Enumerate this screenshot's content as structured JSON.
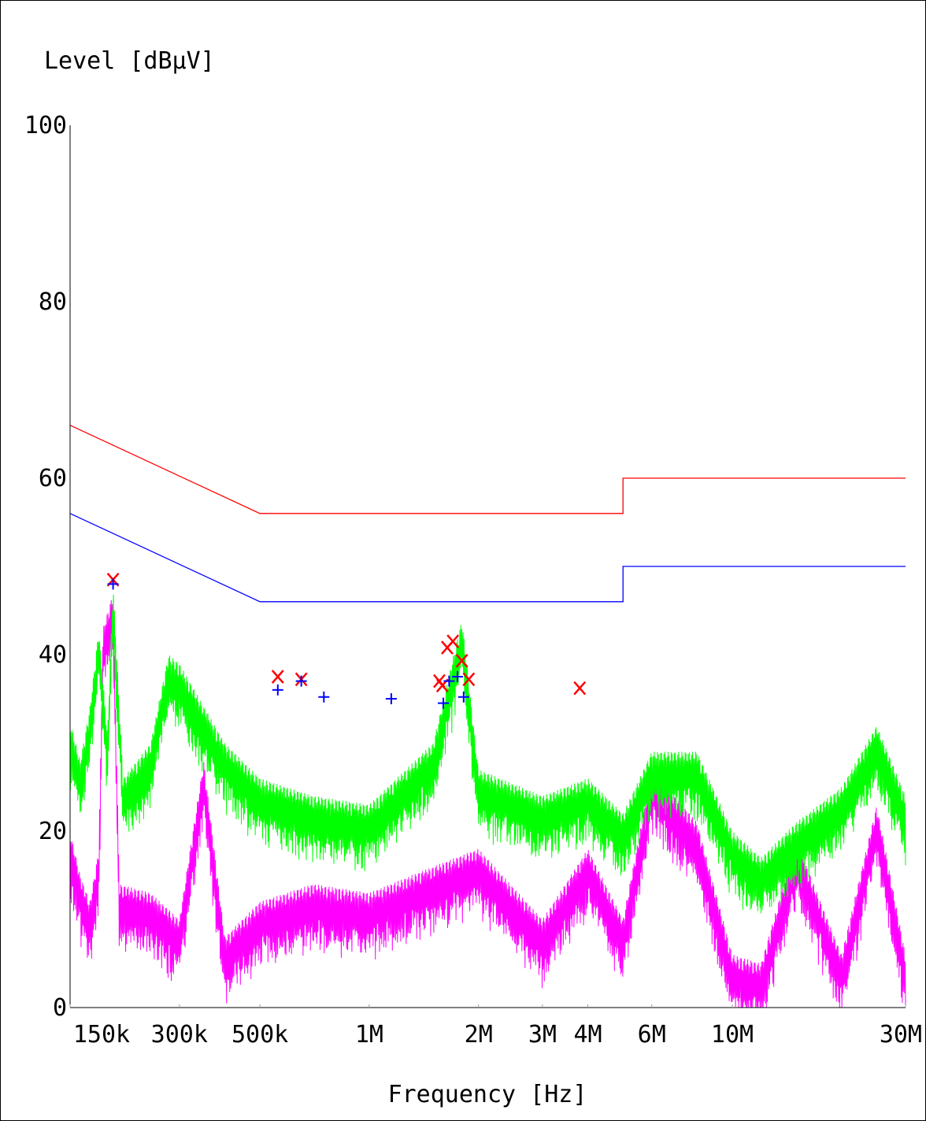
{
  "chart_data": {
    "type": "line",
    "ylabel": "Level [dBµV]",
    "xlabel": "Frequency [Hz]",
    "x_scale": "log",
    "xlim": [
      150000,
      30000000
    ],
    "ylim": [
      0,
      100
    ],
    "y_ticks": [
      0,
      20,
      40,
      60,
      80,
      100
    ],
    "x_ticks": [
      {
        "value": 150000,
        "label": "150k"
      },
      {
        "value": 300000,
        "label": "300k"
      },
      {
        "value": 500000,
        "label": "500k"
      },
      {
        "value": 1000000,
        "label": "1M"
      },
      {
        "value": 2000000,
        "label": "2M"
      },
      {
        "value": 3000000,
        "label": "3M"
      },
      {
        "value": 4000000,
        "label": "4M"
      },
      {
        "value": 6000000,
        "label": "6M"
      },
      {
        "value": 10000000,
        "label": "10M"
      },
      {
        "value": 30000000,
        "label": "30M"
      }
    ],
    "grid": false,
    "colors": {
      "qp_limit": "#ff0000",
      "av_limit": "#0000ff",
      "qp_trace": "#00ff00",
      "av_trace": "#ff00ff",
      "qp_marker": "#ff0000",
      "av_marker": "#0000ff"
    },
    "limit_lines": [
      {
        "key": "qp_limit",
        "points": [
          [
            150000,
            66
          ],
          [
            500000,
            56
          ],
          [
            5000000,
            56
          ],
          [
            5000000,
            60
          ],
          [
            30000000,
            60
          ]
        ]
      },
      {
        "key": "av_limit",
        "points": [
          [
            150000,
            56
          ],
          [
            500000,
            46
          ],
          [
            5000000,
            46
          ],
          [
            5000000,
            50
          ],
          [
            30000000,
            50
          ]
        ]
      }
    ],
    "qp_trace_envelope": [
      [
        150000,
        32.5
      ],
      [
        160000,
        28
      ],
      [
        170000,
        34
      ],
      [
        180000,
        43
      ],
      [
        190000,
        31
      ],
      [
        197000,
        48
      ],
      [
        210000,
        26
      ],
      [
        250000,
        30
      ],
      [
        280000,
        40
      ],
      [
        300000,
        39
      ],
      [
        400000,
        30
      ],
      [
        500000,
        26
      ],
      [
        700000,
        24
      ],
      [
        1000000,
        23
      ],
      [
        1500000,
        30
      ],
      [
        1800000,
        44
      ],
      [
        2000000,
        27
      ],
      [
        3000000,
        24
      ],
      [
        4000000,
        26
      ],
      [
        5000000,
        22
      ],
      [
        6000000,
        29
      ],
      [
        8000000,
        29
      ],
      [
        10000000,
        20
      ],
      [
        12000000,
        17
      ],
      [
        15000000,
        21
      ],
      [
        20000000,
        25
      ],
      [
        25000000,
        32
      ],
      [
        30000000,
        24
      ]
    ],
    "av_trace_envelope": [
      [
        150000,
        20
      ],
      [
        160000,
        15
      ],
      [
        170000,
        12
      ],
      [
        180000,
        18
      ],
      [
        185000,
        43
      ],
      [
        197000,
        47
      ],
      [
        205000,
        14
      ],
      [
        250000,
        13
      ],
      [
        300000,
        10
      ],
      [
        350000,
        28
      ],
      [
        400000,
        8
      ],
      [
        500000,
        12
      ],
      [
        700000,
        14
      ],
      [
        1000000,
        13
      ],
      [
        1500000,
        16
      ],
      [
        2000000,
        18
      ],
      [
        3000000,
        10
      ],
      [
        4000000,
        18
      ],
      [
        5000000,
        10
      ],
      [
        6000000,
        27
      ],
      [
        8000000,
        21
      ],
      [
        10000000,
        6
      ],
      [
        12000000,
        5
      ],
      [
        15000000,
        19
      ],
      [
        20000000,
        6
      ],
      [
        25000000,
        23
      ],
      [
        30000000,
        6
      ]
    ],
    "qp_markers": [
      [
        197000,
        48.5
      ],
      [
        560000,
        37.5
      ],
      [
        650000,
        37.2
      ],
      [
        1560000,
        37
      ],
      [
        1590000,
        36.5
      ],
      [
        1640000,
        40.8
      ],
      [
        1700000,
        41.5
      ],
      [
        1800000,
        39.3
      ],
      [
        1880000,
        37.2
      ],
      [
        3800000,
        36.2
      ]
    ],
    "av_markers": [
      [
        197000,
        48
      ],
      [
        560000,
        36
      ],
      [
        650000,
        37
      ],
      [
        750000,
        35.2
      ],
      [
        1150000,
        35
      ],
      [
        1600000,
        34.5
      ],
      [
        1660000,
        37
      ],
      [
        1750000,
        37.5
      ],
      [
        1820000,
        35.2
      ]
    ]
  }
}
